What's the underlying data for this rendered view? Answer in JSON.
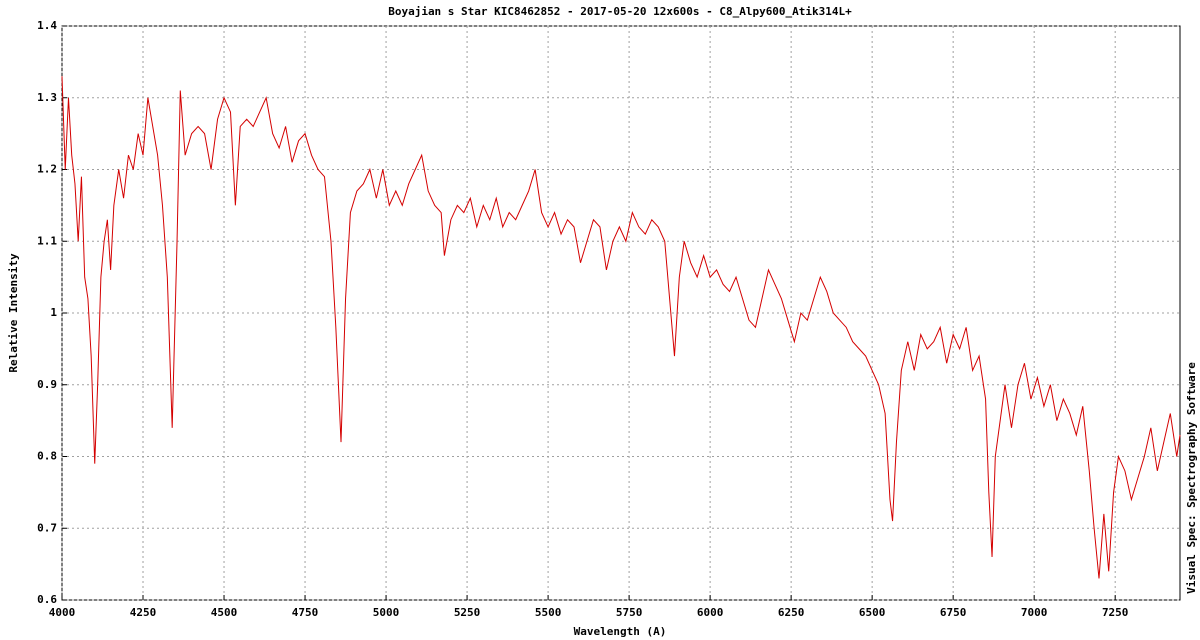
{
  "chart_data": {
    "type": "line",
    "title": "Boyajian s Star  KIC8462852 - 2017-05-20 12x600s - C8_Alpy600_Atik314L+",
    "x_label": "Wavelength (A)",
    "y_label": "Relative Intensity",
    "annotation": "Visual Spec: Spectrography Software",
    "xlim": [
      4000,
      7450
    ],
    "ylim": [
      0.6,
      1.4
    ],
    "xticks": [
      4000,
      4250,
      4500,
      4750,
      5000,
      5250,
      5500,
      5750,
      6000,
      6250,
      6500,
      6750,
      7000,
      7250
    ],
    "yticks": [
      0.6,
      0.7,
      0.8,
      0.9,
      1,
      1.1,
      1.2,
      1.3,
      1.4
    ],
    "grid": true,
    "series": [
      {
        "color": "#d40000",
        "x": [
          4000,
          4010,
          4020,
          4030,
          4040,
          4050,
          4060,
          4070,
          4080,
          4090,
          4101,
          4110,
          4120,
          4130,
          4140,
          4150,
          4160,
          4175,
          4190,
          4205,
          4220,
          4235,
          4250,
          4265,
          4280,
          4295,
          4310,
          4325,
          4340,
          4355,
          4365,
          4380,
          4400,
          4420,
          4440,
          4460,
          4480,
          4500,
          4520,
          4535,
          4550,
          4570,
          4590,
          4610,
          4630,
          4650,
          4670,
          4690,
          4710,
          4730,
          4750,
          4770,
          4790,
          4810,
          4830,
          4845,
          4861,
          4875,
          4890,
          4910,
          4930,
          4950,
          4970,
          4990,
          5010,
          5030,
          5050,
          5070,
          5090,
          5110,
          5130,
          5150,
          5170,
          5180,
          5200,
          5220,
          5240,
          5260,
          5280,
          5300,
          5320,
          5340,
          5360,
          5380,
          5400,
          5420,
          5440,
          5460,
          5480,
          5500,
          5520,
          5540,
          5560,
          5580,
          5600,
          5620,
          5640,
          5660,
          5680,
          5700,
          5720,
          5740,
          5760,
          5780,
          5800,
          5820,
          5840,
          5860,
          5875,
          5890,
          5905,
          5920,
          5940,
          5960,
          5980,
          6000,
          6020,
          6040,
          6060,
          6080,
          6100,
          6120,
          6140,
          6160,
          6180,
          6200,
          6220,
          6240,
          6260,
          6280,
          6300,
          6320,
          6340,
          6360,
          6380,
          6400,
          6420,
          6440,
          6460,
          6480,
          6500,
          6520,
          6540,
          6555,
          6563,
          6575,
          6590,
          6610,
          6630,
          6650,
          6670,
          6690,
          6710,
          6730,
          6750,
          6770,
          6790,
          6810,
          6830,
          6850,
          6860,
          6870,
          6880,
          6895,
          6910,
          6930,
          6950,
          6970,
          6990,
          7010,
          7030,
          7050,
          7070,
          7090,
          7110,
          7130,
          7150,
          7170,
          7185,
          7200,
          7215,
          7230,
          7245,
          7260,
          7280,
          7300,
          7320,
          7340,
          7360,
          7380,
          7400,
          7420,
          7440,
          7450
        ],
        "values": [
          1.33,
          1.2,
          1.3,
          1.22,
          1.18,
          1.1,
          1.19,
          1.05,
          1.02,
          0.94,
          0.79,
          0.9,
          1.05,
          1.1,
          1.13,
          1.06,
          1.15,
          1.2,
          1.16,
          1.22,
          1.2,
          1.25,
          1.22,
          1.3,
          1.26,
          1.22,
          1.15,
          1.05,
          0.84,
          1.1,
          1.31,
          1.22,
          1.25,
          1.26,
          1.25,
          1.2,
          1.27,
          1.3,
          1.28,
          1.15,
          1.26,
          1.27,
          1.26,
          1.28,
          1.3,
          1.25,
          1.23,
          1.26,
          1.21,
          1.24,
          1.25,
          1.22,
          1.2,
          1.19,
          1.1,
          0.98,
          0.82,
          1.02,
          1.14,
          1.17,
          1.18,
          1.2,
          1.16,
          1.2,
          1.15,
          1.17,
          1.15,
          1.18,
          1.2,
          1.22,
          1.17,
          1.15,
          1.14,
          1.08,
          1.13,
          1.15,
          1.14,
          1.16,
          1.12,
          1.15,
          1.13,
          1.16,
          1.12,
          1.14,
          1.13,
          1.15,
          1.17,
          1.2,
          1.14,
          1.12,
          1.14,
          1.11,
          1.13,
          1.12,
          1.07,
          1.1,
          1.13,
          1.12,
          1.06,
          1.1,
          1.12,
          1.1,
          1.14,
          1.12,
          1.11,
          1.13,
          1.12,
          1.1,
          1.02,
          0.94,
          1.05,
          1.1,
          1.07,
          1.05,
          1.08,
          1.05,
          1.06,
          1.04,
          1.03,
          1.05,
          1.02,
          0.99,
          0.98,
          1.02,
          1.06,
          1.04,
          1.02,
          0.99,
          0.96,
          1.0,
          0.99,
          1.02,
          1.05,
          1.03,
          1.0,
          0.99,
          0.98,
          0.96,
          0.95,
          0.94,
          0.92,
          0.9,
          0.86,
          0.74,
          0.71,
          0.82,
          0.92,
          0.96,
          0.92,
          0.97,
          0.95,
          0.96,
          0.98,
          0.93,
          0.97,
          0.95,
          0.98,
          0.92,
          0.94,
          0.88,
          0.75,
          0.66,
          0.8,
          0.85,
          0.9,
          0.84,
          0.9,
          0.93,
          0.88,
          0.91,
          0.87,
          0.9,
          0.85,
          0.88,
          0.86,
          0.83,
          0.87,
          0.78,
          0.7,
          0.63,
          0.72,
          0.64,
          0.75,
          0.8,
          0.78,
          0.74,
          0.77,
          0.8,
          0.84,
          0.78,
          0.82,
          0.86,
          0.8,
          0.83
        ]
      }
    ]
  }
}
